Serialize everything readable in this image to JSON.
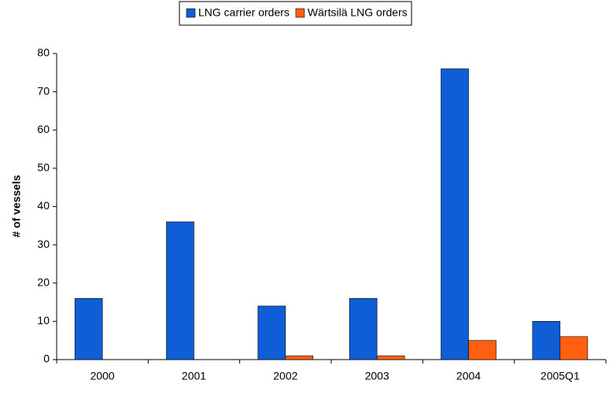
{
  "chart_data": {
    "type": "bar",
    "y_label": "# of vessels",
    "categories": [
      "2000",
      "2001",
      "2002",
      "2003",
      "2004",
      "2005Q1"
    ],
    "series": [
      {
        "name": "LNG carrier orders",
        "color": "#0f5ed6",
        "values": [
          16,
          36,
          14,
          16,
          76,
          10
        ]
      },
      {
        "name": "Wärtsilä LNG orders",
        "color": "#ff5f0f",
        "values": [
          0,
          0,
          1,
          1,
          5,
          6
        ]
      }
    ],
    "ylim": [
      0,
      80
    ],
    "yticks": [
      0,
      10,
      20,
      30,
      40,
      50,
      60,
      70,
      80
    ],
    "grid": false,
    "legend": "top"
  }
}
